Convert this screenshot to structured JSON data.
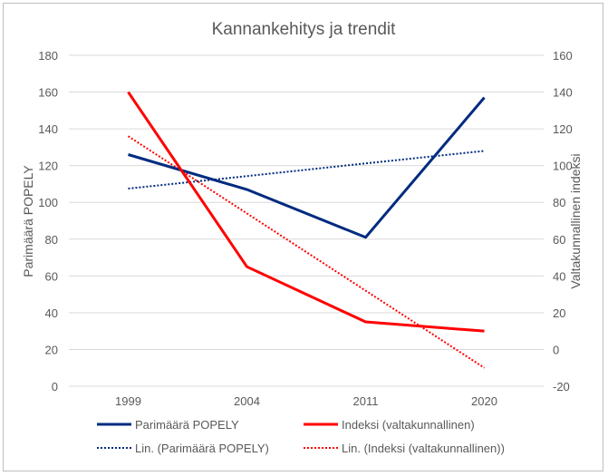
{
  "chart_data": {
    "type": "line",
    "title": "Kannankehitys ja trendit",
    "categories": [
      "1999",
      "2004",
      "2011",
      "2020"
    ],
    "y_left": {
      "label": "Parimäärä POPELY",
      "range": [
        0,
        180
      ],
      "ticks": [
        0,
        20,
        40,
        60,
        80,
        100,
        120,
        140,
        160,
        180
      ]
    },
    "y_right": {
      "label": "Valtakunnallinen indeksi",
      "range": [
        -20,
        160
      ],
      "ticks": [
        -20,
        0,
        20,
        40,
        60,
        80,
        100,
        120,
        140,
        160
      ]
    },
    "grid": true,
    "legend_position": "bottom",
    "series": [
      {
        "name": "Parimäärä POPELY",
        "axis": "left",
        "style": "solid",
        "color": "#002B7F",
        "values": [
          126,
          107,
          81,
          157
        ]
      },
      {
        "name": "Indeksi (valtakunnallinen)",
        "axis": "right",
        "style": "solid",
        "color": "#FF0000",
        "values": [
          140,
          45,
          15,
          10
        ]
      },
      {
        "name": "Lin. (Parimäärä POPELY)",
        "axis": "left",
        "style": "dotted",
        "color": "#002B7F",
        "values": [
          107.5,
          114.3,
          121.2,
          128
        ]
      },
      {
        "name": "Lin. (Indeksi (valtakunnallinen))",
        "axis": "right",
        "style": "dotted",
        "color": "#FF0000",
        "values": [
          116,
          74,
          32,
          -10
        ]
      }
    ]
  }
}
